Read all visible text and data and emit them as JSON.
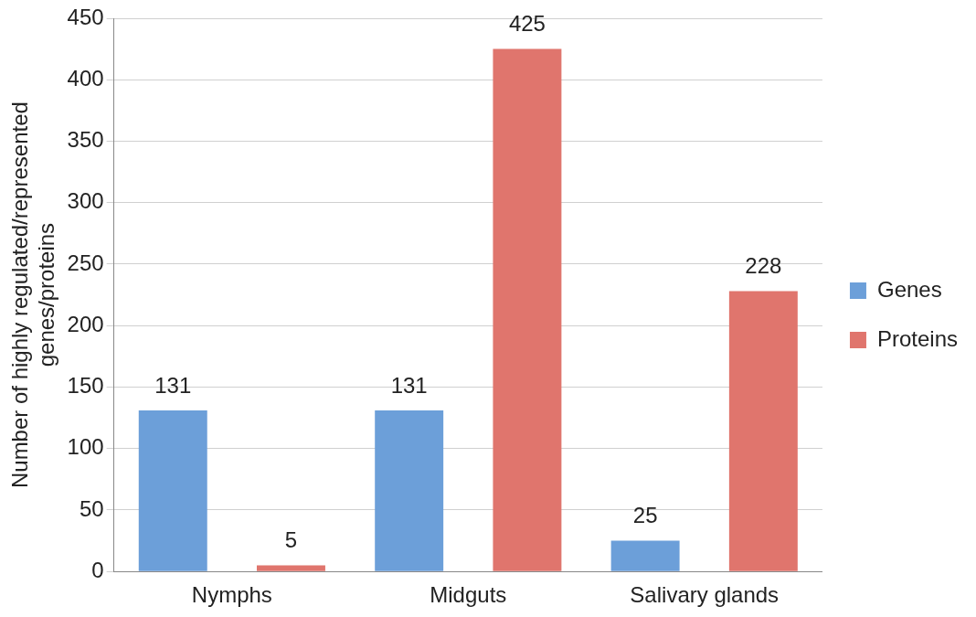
{
  "chart_data": {
    "type": "bar",
    "ylabel": "Number of highly regulated/represented genes/proteins",
    "categories": [
      "Nymphs",
      "Midguts",
      "Salivary glands"
    ],
    "series": [
      {
        "name": "Genes",
        "color": "#6c9fd9",
        "values": [
          131,
          131,
          25
        ]
      },
      {
        "name": "Proteins",
        "color": "#e0756d",
        "values": [
          5,
          425,
          228
        ]
      }
    ],
    "ylim": [
      0,
      450
    ],
    "yticks": [
      0,
      50,
      100,
      150,
      200,
      250,
      300,
      350,
      400,
      450
    ],
    "grid": "y",
    "legend": "right",
    "data_labels": true
  }
}
